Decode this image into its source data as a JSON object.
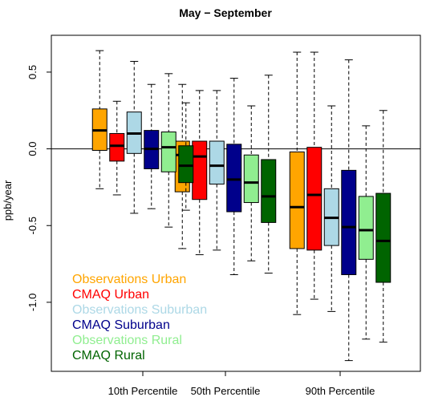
{
  "chart_data": {
    "type": "box",
    "title": "May − September",
    "ylabel": "ppb/year",
    "xlabel": "",
    "ylim": [
      -1.45,
      0.74
    ],
    "y_ticks": [
      0.5,
      0.0,
      -0.5,
      -1.0
    ],
    "y_tick_labels": [
      "0.5",
      "0.0",
      "-0.5",
      "-1.0"
    ],
    "reference_line": 0,
    "categories": [
      "10th Percentile",
      "50th Percentile",
      "90th Percentile"
    ],
    "series": [
      {
        "name": "Observations Urban",
        "color": "#FFA500",
        "boxes": [
          {
            "whisker_low": -0.26,
            "q1": -0.01,
            "median": 0.12,
            "q3": 0.26,
            "whisker_high": 0.64
          },
          {
            "whisker_low": -0.65,
            "q1": -0.28,
            "median": -0.04,
            "q3": 0.05,
            "whisker_high": 0.42
          },
          {
            "whisker_low": -1.08,
            "q1": -0.65,
            "median": -0.38,
            "q3": -0.02,
            "whisker_high": 0.63
          }
        ]
      },
      {
        "name": "CMAQ Urban",
        "color": "#FF0000",
        "boxes": [
          {
            "whisker_low": -0.3,
            "q1": -0.08,
            "median": 0.02,
            "q3": 0.1,
            "whisker_high": 0.31
          },
          {
            "whisker_low": -0.69,
            "q1": -0.33,
            "median": -0.05,
            "q3": 0.05,
            "whisker_high": 0.38
          },
          {
            "whisker_low": -0.98,
            "q1": -0.66,
            "median": -0.3,
            "q3": 0.01,
            "whisker_high": 0.63
          }
        ]
      },
      {
        "name": "Observations Suburban",
        "color": "#ADD8E6",
        "boxes": [
          {
            "whisker_low": -0.42,
            "q1": -0.03,
            "median": 0.1,
            "q3": 0.24,
            "whisker_high": 0.57
          },
          {
            "whisker_low": -0.66,
            "q1": -0.23,
            "median": -0.11,
            "q3": 0.05,
            "whisker_high": 0.38
          },
          {
            "whisker_low": -1.06,
            "q1": -0.63,
            "median": -0.45,
            "q3": -0.26,
            "whisker_high": 0.28
          }
        ]
      },
      {
        "name": "CMAQ Suburban",
        "color": "#00008B",
        "boxes": [
          {
            "whisker_low": -0.39,
            "q1": -0.13,
            "median": 0.0,
            "q3": 0.12,
            "whisker_high": 0.42
          },
          {
            "whisker_low": -0.82,
            "q1": -0.41,
            "median": -0.2,
            "q3": 0.03,
            "whisker_high": 0.46
          },
          {
            "whisker_low": -1.38,
            "q1": -0.82,
            "median": -0.51,
            "q3": -0.14,
            "whisker_high": 0.58
          }
        ]
      },
      {
        "name": "Observations Rural",
        "color": "#90EE90",
        "boxes": [
          {
            "whisker_low": -0.51,
            "q1": -0.15,
            "median": 0.01,
            "q3": 0.11,
            "whisker_high": 0.49
          },
          {
            "whisker_low": -0.73,
            "q1": -0.35,
            "median": -0.22,
            "q3": -0.04,
            "whisker_high": 0.28
          },
          {
            "whisker_low": -1.24,
            "q1": -0.72,
            "median": -0.53,
            "q3": -0.31,
            "whisker_high": 0.15
          }
        ]
      },
      {
        "name": "CMAQ Rural",
        "color": "#006400",
        "boxes": [
          {
            "whisker_low": -0.4,
            "q1": -0.22,
            "median": -0.11,
            "q3": 0.02,
            "whisker_high": 0.3
          },
          {
            "whisker_low": -0.81,
            "q1": -0.48,
            "median": -0.31,
            "q3": -0.07,
            "whisker_high": 0.48
          },
          {
            "whisker_low": -1.26,
            "q1": -0.87,
            "median": -0.6,
            "q3": -0.29,
            "whisker_high": 0.25
          }
        ]
      }
    ],
    "legend": {
      "placement": "bottom-left",
      "entries": [
        {
          "label": "Observations Urban",
          "color": "#FFA500"
        },
        {
          "label": "CMAQ Urban",
          "color": "#FF0000"
        },
        {
          "label": "Observations Suburban",
          "color": "#ADD8E6"
        },
        {
          "label": "CMAQ Suburban",
          "color": "#00008B"
        },
        {
          "label": "Observations Rural",
          "color": "#90EE90"
        },
        {
          "label": "CMAQ Rural",
          "color": "#006400"
        }
      ]
    },
    "grid": false
  }
}
